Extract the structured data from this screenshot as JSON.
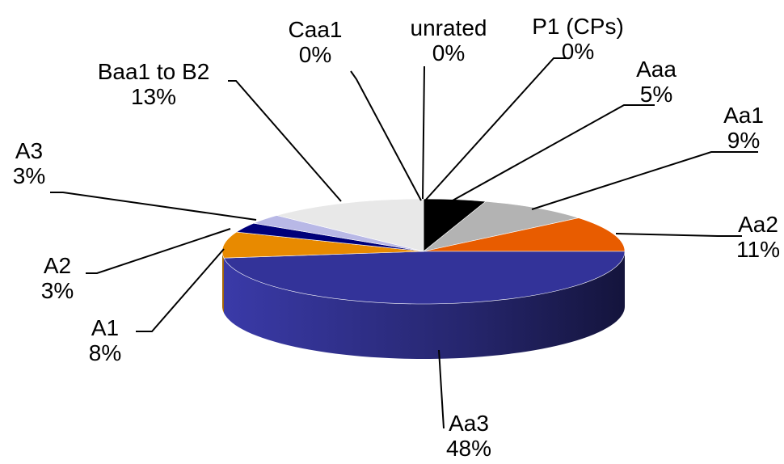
{
  "chart_data": {
    "type": "pie",
    "title": "",
    "slices": [
      {
        "label": "Aaa",
        "pct_text": "5%",
        "value": 5,
        "color": "#000000"
      },
      {
        "label": "Aa1",
        "pct_text": "9%",
        "value": 9,
        "color": "#b3b3b3"
      },
      {
        "label": "Aa2",
        "pct_text": "11%",
        "value": 11,
        "color": "#e85c00"
      },
      {
        "label": "Aa3",
        "pct_text": "48%",
        "value": 48,
        "color": "#333399"
      },
      {
        "label": "A1",
        "pct_text": "8%",
        "value": 8,
        "color": "#e88a00"
      },
      {
        "label": "A2",
        "pct_text": "3%",
        "value": 3,
        "color": "#00007a"
      },
      {
        "label": "A3",
        "pct_text": "3%",
        "value": 3,
        "color": "#b8b8e6"
      },
      {
        "label": "Baa1 to B2",
        "pct_text": "13%",
        "value": 13,
        "color": "#e8e8e8"
      },
      {
        "label": "Caa1",
        "pct_text": "0%",
        "value": 0,
        "color": "#cccccc"
      },
      {
        "label": "unrated",
        "pct_text": "0%",
        "value": 0,
        "color": "#cccccc"
      },
      {
        "label": "P1 (CPs)",
        "pct_text": "0%",
        "value": 0,
        "color": "#cccccc"
      }
    ],
    "style": "3d-tilted",
    "legend": "none",
    "labels": "outside-with-leader-lines"
  }
}
